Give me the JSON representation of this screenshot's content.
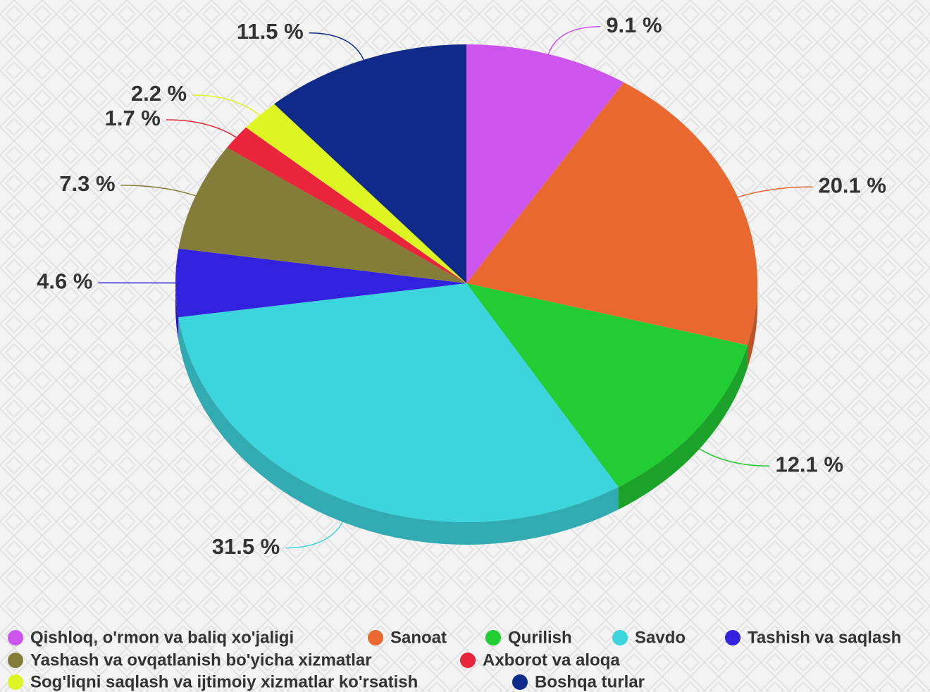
{
  "chart_data": {
    "type": "pie",
    "categories": [
      "Qishloq, o'rmon va baliq xo'jaligi",
      "Sanoat",
      "Qurilish",
      "Savdo",
      "Tashish va saqlash",
      "Yashash va ovqatlanish bo'yicha xizmatlar",
      "Axborot va aloqa",
      "Sog'liqni saqlash va ijtimoiy xizmatlar ko'rsatish",
      "Boshqa turlar"
    ],
    "values": [
      9.1,
      20.1,
      12.1,
      31.5,
      4.6,
      7.3,
      1.7,
      2.2,
      11.5
    ],
    "value_labels": [
      "9.1 %",
      "20.1 %",
      "12.1 %",
      "31.5 %",
      "4.6 %",
      "7.3 %",
      "1.7 %",
      "2.2 %",
      "11.5 %"
    ],
    "colors": [
      "#cc55ee",
      "#e86830",
      "#22cc33",
      "#3dd5dd",
      "#3322dd",
      "#847d3a",
      "#e8253a",
      "#ddf522",
      "#0f2a88"
    ]
  }
}
